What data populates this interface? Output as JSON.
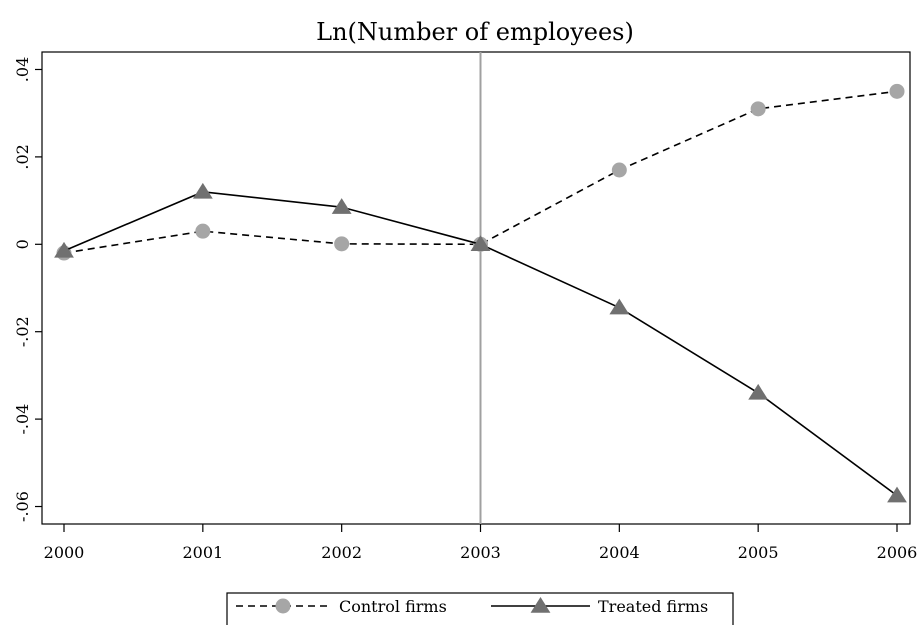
{
  "chart_data": {
    "type": "line",
    "title": "Ln(Number of employees)",
    "xlabel": "",
    "ylabel": "",
    "x": [
      2000,
      2001,
      2002,
      2003,
      2004,
      2005,
      2006
    ],
    "x_tick_labels": [
      "2000",
      "2001",
      "2002",
      "2003",
      "2004",
      "2005",
      "2006"
    ],
    "xlim": [
      2000,
      2006
    ],
    "ylim": [
      -0.064,
      0.044
    ],
    "y_ticks": [
      -0.06,
      -0.04,
      -0.02,
      0,
      0.02,
      0.04
    ],
    "y_tick_labels": [
      "-.06",
      "-.04",
      "-.02",
      "0",
      ".02",
      ".04"
    ],
    "grid": false,
    "legend_position": "bottom",
    "reference_line": {
      "x": 2003,
      "color": "#a0a0a0"
    },
    "series": [
      {
        "name": "Control firms",
        "values": [
          -0.002,
          0.003,
          0.0001,
          0.0,
          0.017,
          0.031,
          0.035
        ],
        "line_style": "dashed",
        "marker": "circle",
        "line_color": "#000000",
        "marker_color": "#a6a6a6"
      },
      {
        "name": "Treated firms",
        "values": [
          -0.0015,
          0.012,
          0.0085,
          0.0,
          -0.0145,
          -0.034,
          -0.0575
        ],
        "line_style": "solid",
        "marker": "triangle",
        "line_color": "#000000",
        "marker_color": "#707070"
      }
    ]
  }
}
